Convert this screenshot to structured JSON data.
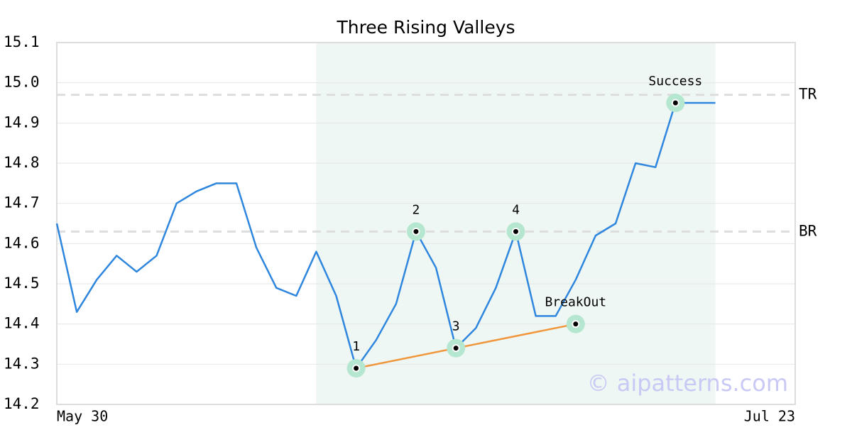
{
  "chart_data": {
    "type": "line",
    "title": "Three Rising Valleys",
    "x": [
      0,
      1,
      2,
      3,
      4,
      5,
      6,
      7,
      8,
      9,
      10,
      11,
      12,
      13,
      14,
      15,
      16,
      17,
      18,
      19,
      20,
      21,
      22,
      23,
      24,
      25,
      26,
      27,
      28,
      29,
      30,
      31,
      32,
      33
    ],
    "values": [
      14.65,
      14.43,
      14.51,
      14.57,
      14.53,
      14.57,
      14.7,
      14.73,
      14.75,
      14.75,
      14.59,
      14.49,
      14.47,
      14.58,
      14.47,
      14.29,
      14.36,
      14.45,
      14.63,
      14.54,
      14.34,
      14.39,
      14.49,
      14.63,
      14.42,
      14.42,
      14.51,
      14.62,
      14.65,
      14.8,
      14.79,
      14.95,
      14.95,
      14.95
    ],
    "color": "#2e86de",
    "xlim": [
      0,
      37
    ],
    "xticks": [
      {
        "value": 0,
        "label": "May 30"
      },
      {
        "value": 37,
        "label": "Jul 23"
      }
    ],
    "ylim": [
      14.2,
      15.1
    ],
    "yticks": [
      {
        "value": 14.2,
        "label": "14.2"
      },
      14.3,
      14.4,
      14.5,
      14.6,
      14.7,
      14.8,
      14.9,
      {
        "value": 15,
        "label": "15.0"
      },
      15.1
    ],
    "grid": true,
    "shade_range": [
      13,
      33
    ],
    "levels": [
      {
        "label": "TR",
        "value": 14.97
      },
      {
        "label": "BR",
        "value": 14.63
      }
    ],
    "trendline": {
      "color": "#f0963c",
      "x": [
        15,
        26
      ],
      "y": [
        14.29,
        14.4
      ]
    },
    "annotations": [
      {
        "label": "1",
        "x": 15,
        "y": 14.29
      },
      {
        "label": "2",
        "x": 18,
        "y": 14.63
      },
      {
        "label": "3",
        "x": 20,
        "y": 14.34
      },
      {
        "label": "4",
        "x": 23,
        "y": 14.63
      },
      {
        "label": "BreakOut",
        "x": 26,
        "y": 14.4
      },
      {
        "label": "Success",
        "x": 31,
        "y": 14.95
      }
    ],
    "watermark": "© aipatterns.com"
  }
}
